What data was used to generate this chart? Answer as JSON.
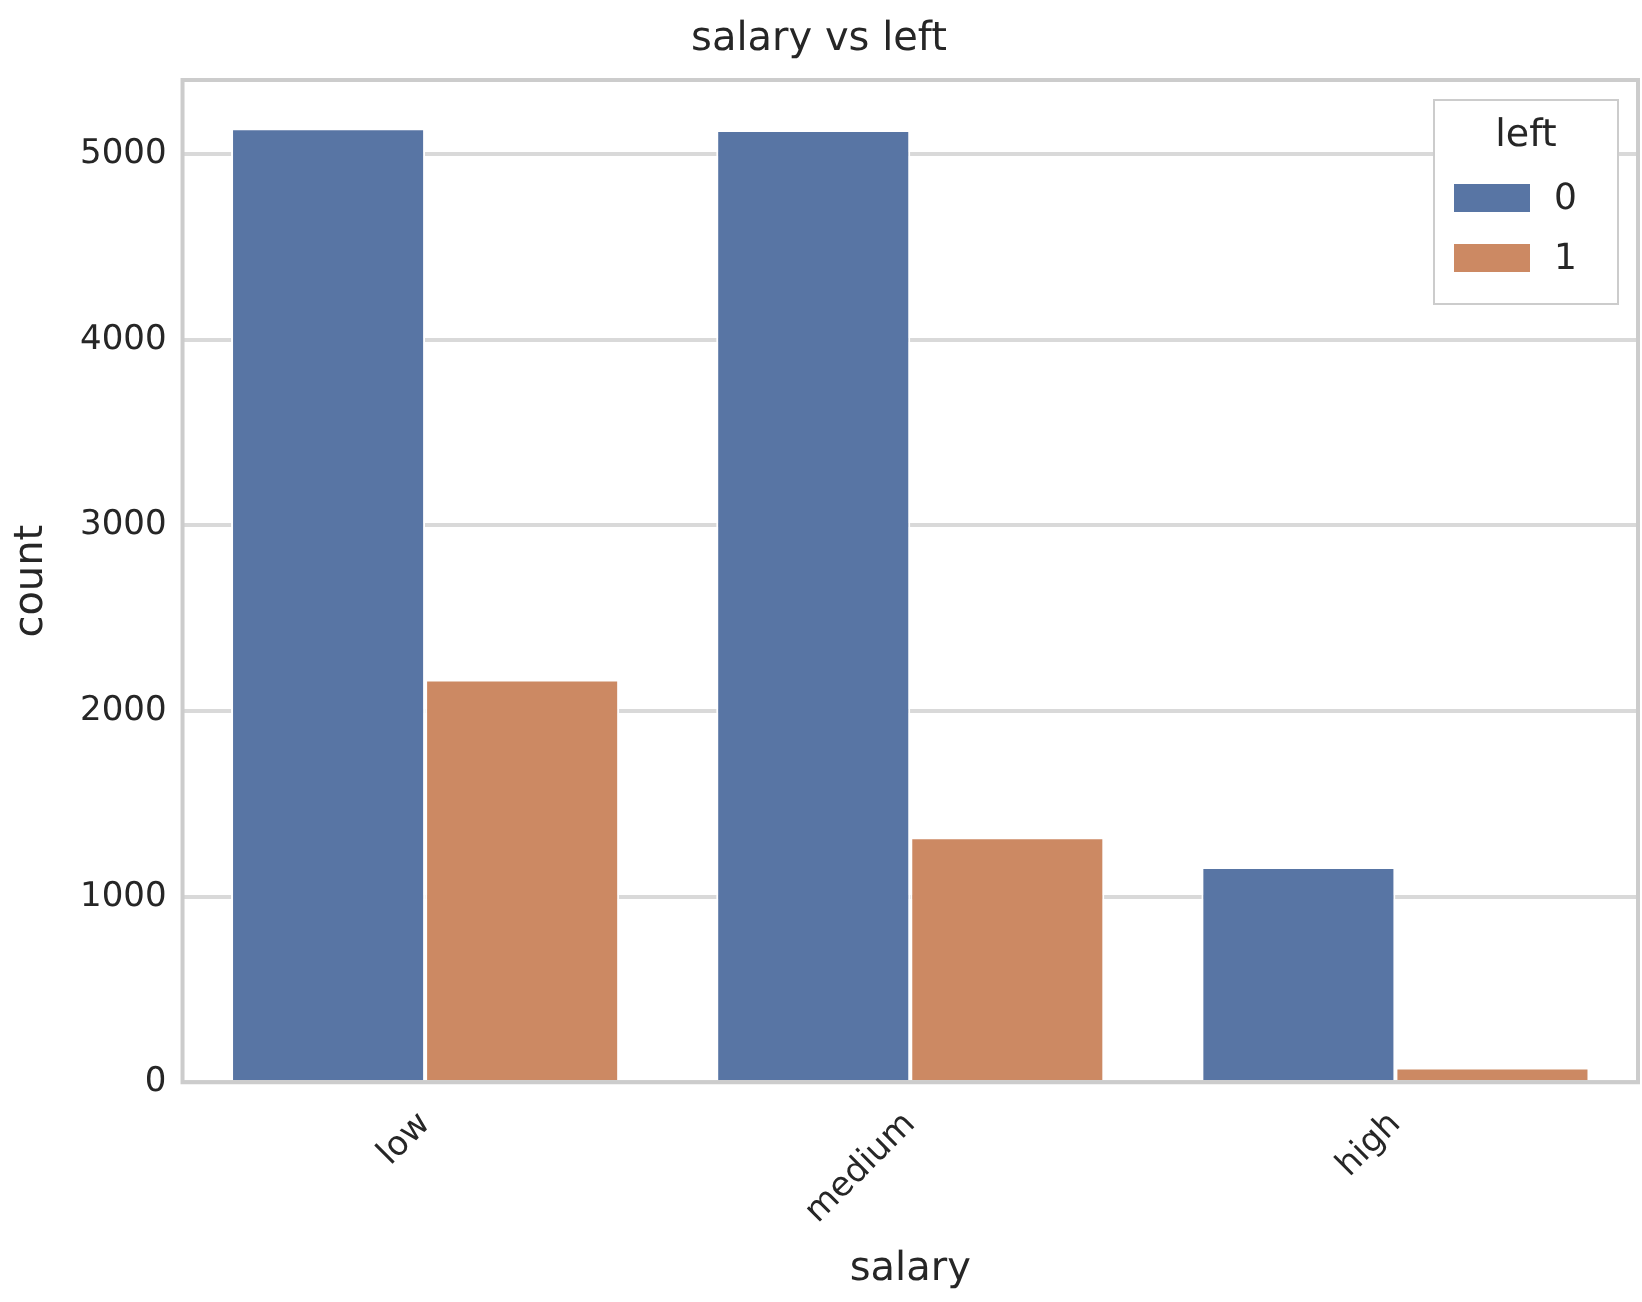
{
  "chart_data": {
    "type": "bar",
    "title": "salary vs left",
    "xlabel": "salary",
    "ylabel": "count",
    "legend_title": "left",
    "categories": [
      "low",
      "medium",
      "high"
    ],
    "series": [
      {
        "name": "0",
        "color": "#5875a4",
        "values": [
          5140,
          5130,
          1160
        ]
      },
      {
        "name": "1",
        "color": "#cc8963",
        "values": [
          2170,
          1320,
          80
        ]
      }
    ],
    "ylim": [
      0,
      5400
    ],
    "yticks": [
      0,
      1000,
      2000,
      3000,
      4000,
      5000
    ],
    "grid": "y",
    "legend": "top right"
  }
}
